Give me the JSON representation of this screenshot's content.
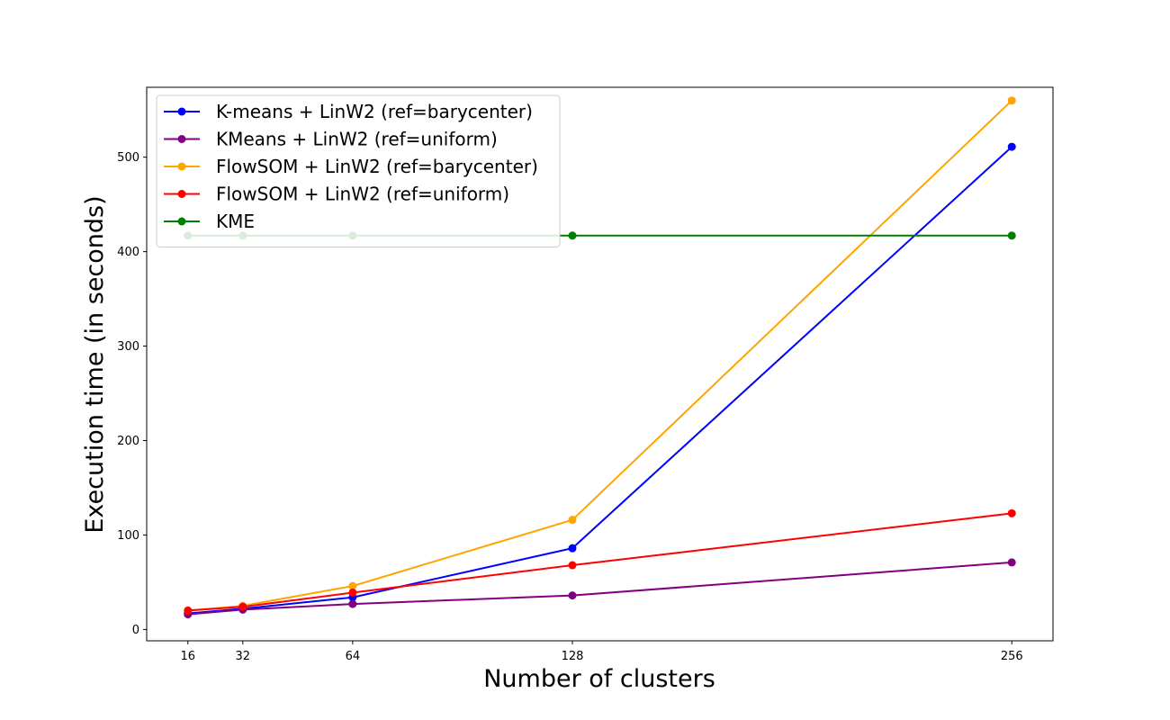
{
  "chart_data": {
    "type": "line",
    "title": "",
    "xlabel": "Number of clusters",
    "ylabel": "Execution time (in seconds)",
    "x": [
      16,
      32,
      64,
      128,
      256
    ],
    "xticks": [
      "16",
      "32",
      "64",
      "128",
      "256"
    ],
    "xlim": [
      4,
      268
    ],
    "yticks": [
      0,
      100,
      200,
      300,
      400,
      500
    ],
    "ylim": [
      -12,
      574
    ],
    "grid": false,
    "legend_position": "top-left",
    "series": [
      {
        "name": "K-means + LinW2 (ref=barycenter)",
        "color": "#0000ff",
        "values": [
          17,
          22,
          34,
          86,
          511
        ]
      },
      {
        "name": "KMeans + LinW2 (ref=uniform)",
        "color": "#800080",
        "values": [
          16,
          21,
          27,
          36,
          71
        ]
      },
      {
        "name": "FlowSOM + LinW2 (ref=barycenter)",
        "color": "#ffa500",
        "values": [
          20,
          25,
          46,
          116,
          560
        ]
      },
      {
        "name": "FlowSOM + LinW2 (ref=uniform)",
        "color": "#ff0000",
        "values": [
          20,
          24,
          39,
          68,
          123
        ]
      },
      {
        "name": "KME",
        "color": "#008000",
        "values": [
          417,
          417,
          417,
          417,
          417
        ]
      }
    ]
  }
}
